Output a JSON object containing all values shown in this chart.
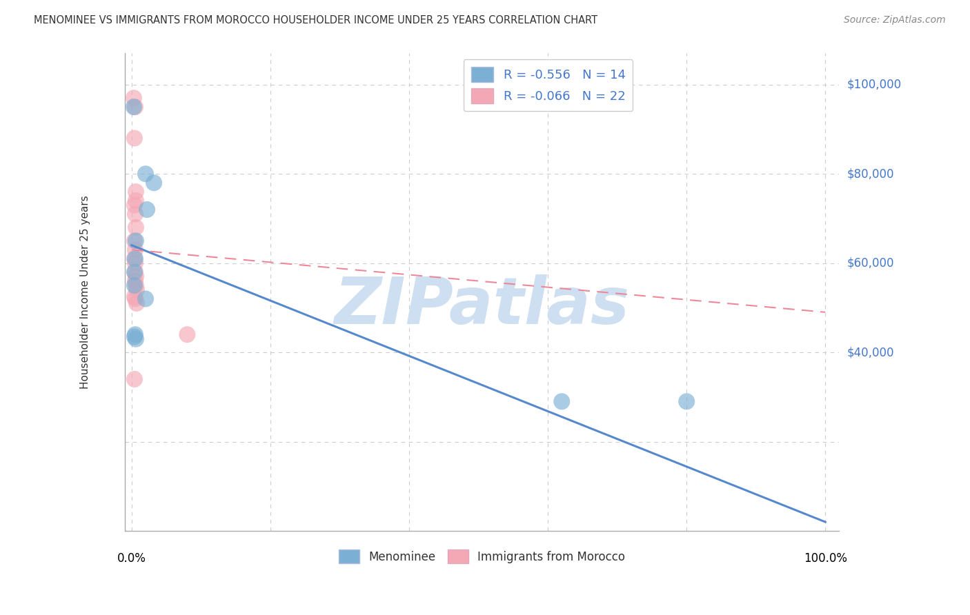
{
  "title": "MENOMINEE VS IMMIGRANTS FROM MOROCCO HOUSEHOLDER INCOME UNDER 25 YEARS CORRELATION CHART",
  "source": "Source: ZipAtlas.com",
  "ylabel": "Householder Income Under 25 years",
  "legend1_label": "R = -0.556   N = 14",
  "legend2_label": "R = -0.066   N = 22",
  "legend_bottom1": "Menominee",
  "legend_bottom2": "Immigrants from Morocco",
  "blue_color": "#7BAFD4",
  "pink_color": "#F4A8B5",
  "blue_scatter": [
    [
      0.003,
      95000
    ],
    [
      0.02,
      80000
    ],
    [
      0.032,
      78000
    ],
    [
      0.022,
      72000
    ],
    [
      0.006,
      65000
    ],
    [
      0.005,
      61000
    ],
    [
      0.004,
      58000
    ],
    [
      0.004,
      55000
    ],
    [
      0.02,
      52000
    ],
    [
      0.005,
      44000
    ],
    [
      0.006,
      43000
    ],
    [
      0.62,
      29000
    ],
    [
      0.8,
      29000
    ],
    [
      0.004,
      43500
    ]
  ],
  "pink_scatter": [
    [
      0.003,
      97000
    ],
    [
      0.005,
      95000
    ],
    [
      0.004,
      88000
    ],
    [
      0.006,
      76000
    ],
    [
      0.006,
      74000
    ],
    [
      0.004,
      73000
    ],
    [
      0.005,
      71000
    ],
    [
      0.006,
      68000
    ],
    [
      0.004,
      65000
    ],
    [
      0.005,
      63000
    ],
    [
      0.004,
      61000
    ],
    [
      0.005,
      60000
    ],
    [
      0.005,
      58000
    ],
    [
      0.006,
      57000
    ],
    [
      0.005,
      56000
    ],
    [
      0.006,
      55000
    ],
    [
      0.007,
      54000
    ],
    [
      0.005,
      52000
    ],
    [
      0.007,
      51000
    ],
    [
      0.08,
      44000
    ],
    [
      0.004,
      34000
    ],
    [
      0.004,
      52500
    ]
  ],
  "ylim": [
    0,
    107000
  ],
  "xlim": [
    -0.01,
    1.02
  ],
  "yticks": [
    0,
    20000,
    40000,
    60000,
    80000,
    100000
  ],
  "ytick_labels": [
    "",
    "",
    "$40,000",
    "$60,000",
    "$80,000",
    "$100,000"
  ],
  "blue_line_x": [
    0.0,
    1.0
  ],
  "blue_line_y": [
    64000,
    2000
  ],
  "pink_line_x": [
    0.0,
    1.0
  ],
  "pink_line_y": [
    63000,
    49000
  ],
  "watermark": "ZIPatlas",
  "background_color": "#ffffff",
  "grid_color": "#cccccc"
}
